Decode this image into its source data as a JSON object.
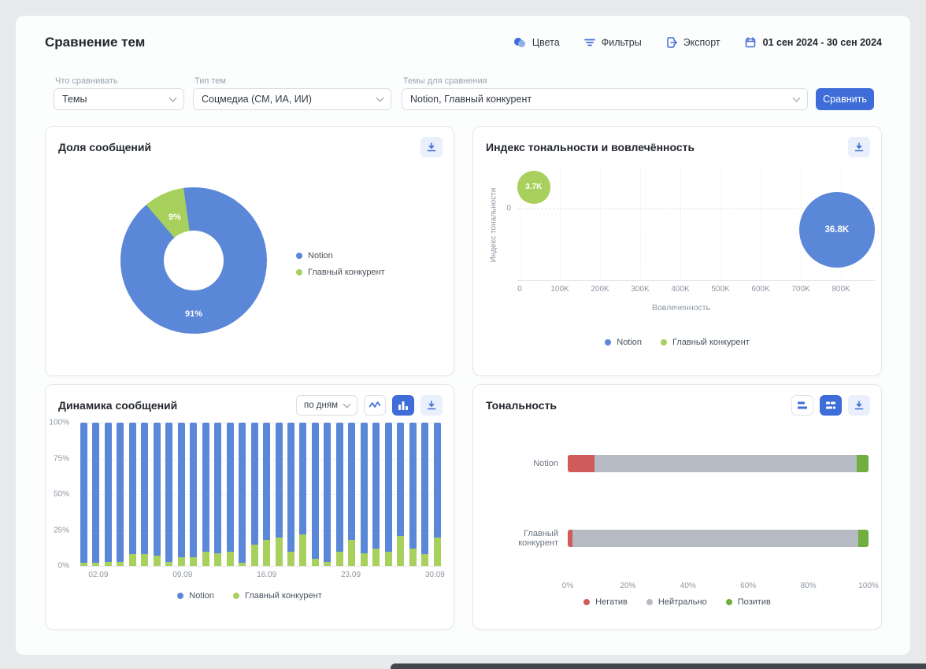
{
  "page": {
    "title": "Сравнение тем"
  },
  "header": {
    "colors_label": "Цвета",
    "filters_label": "Фильтры",
    "export_label": "Экспорт",
    "date_range": "01 сен 2024 - 30 сен 2024"
  },
  "filter_bar": {
    "compare_label": "Что сравнивать",
    "compare_value": "Темы",
    "type_label": "Тип тем",
    "type_value": "Соцмедиа (СМ, ИА, ИИ)",
    "topics_label": "Темы для сравнения",
    "topics_value": "Notion, Главный конкурент",
    "submit_label": "Сравнить"
  },
  "icons": {
    "colors": "palette-circles",
    "filters": "filter-lines",
    "export": "box-arrow-right",
    "date": "calendar",
    "download": "download-tray",
    "line_view": "line-chart",
    "bar_view": "bar-chart",
    "grouped_view": "horizontal-bars",
    "stacked_view": "stacked-bars"
  },
  "colors": {
    "notion_blue": "#5b87d8",
    "competitor_green": "#a8d05c",
    "negative_red": "#d05b5b",
    "neutral_gray": "#b5bac3",
    "positive_green": "#6fae3f",
    "accent_blue": "#3e6cd8"
  },
  "chart_data": [
    {
      "id": "share_donut",
      "type": "pie",
      "title": "Доля сообщений",
      "series": [
        {
          "name": "Notion",
          "value": 91,
          "color": "#5b87d8"
        },
        {
          "name": "Главный конкурент",
          "value": 9,
          "color": "#a8d05c"
        }
      ],
      "labels": [
        "91%",
        "9%"
      ]
    },
    {
      "id": "tonality_engagement",
      "type": "scatter",
      "title": "Индекс тональности и вовлечённость",
      "xlabel": "Вовлеченность",
      "ylabel": "Индекс тональности",
      "x_ticks": [
        "0",
        "100K",
        "200K",
        "300K",
        "400K",
        "500K",
        "600K",
        "700K",
        "800K"
      ],
      "y_ticks": [
        "0"
      ],
      "points": [
        {
          "name": "Notion",
          "label": "36.8K",
          "size": 36800,
          "x": 790000,
          "y": -3,
          "color": "#5b87d8"
        },
        {
          "name": "Главный конкурент",
          "label": "3.7K",
          "size": 3700,
          "x": 35000,
          "y": 3,
          "color": "#a8d05c"
        }
      ]
    },
    {
      "id": "dynamics",
      "type": "bar",
      "stacked": true,
      "percent": true,
      "title": "Динамика сообщений",
      "interval": "по дням",
      "y_ticks": [
        "100%",
        "75%",
        "50%",
        "25%",
        "0%"
      ],
      "categories": [
        "01.09",
        "02.09",
        "03.09",
        "04.09",
        "05.09",
        "06.09",
        "07.09",
        "08.09",
        "09.09",
        "10.09",
        "11.09",
        "12.09",
        "13.09",
        "14.09",
        "15.09",
        "16.09",
        "17.09",
        "18.09",
        "19.09",
        "20.09",
        "21.09",
        "22.09",
        "23.09",
        "24.09",
        "25.09",
        "26.09",
        "27.09",
        "28.09",
        "29.09",
        "30.09"
      ],
      "x_tick_labels": [
        {
          "index": 1,
          "label": "02.09"
        },
        {
          "index": 8,
          "label": "09.09"
        },
        {
          "index": 15,
          "label": "16.09"
        },
        {
          "index": 22,
          "label": "23.09"
        },
        {
          "index": 29,
          "label": "30.09"
        }
      ],
      "series": [
        {
          "name": "Notion",
          "color": "#5b87d8",
          "values": [
            98,
            98,
            97,
            97,
            92,
            92,
            93,
            97,
            94,
            94,
            90,
            91,
            90,
            98,
            85,
            82,
            80,
            90,
            78,
            95,
            97,
            90,
            82,
            91,
            88,
            90,
            79,
            88,
            92,
            80
          ]
        },
        {
          "name": "Главный конкурент",
          "color": "#a8d05c",
          "values": [
            2,
            2,
            3,
            3,
            8,
            8,
            7,
            3,
            6,
            6,
            10,
            9,
            10,
            2,
            15,
            18,
            20,
            10,
            22,
            5,
            3,
            10,
            18,
            9,
            12,
            10,
            21,
            12,
            8,
            20
          ]
        }
      ]
    },
    {
      "id": "tonality",
      "type": "bar",
      "orientation": "horizontal",
      "stacked": true,
      "percent": true,
      "title": "Тональность",
      "categories": [
        "Notion",
        "Главный конкурент"
      ],
      "x_ticks": [
        "0%",
        "20%",
        "40%",
        "60%",
        "80%",
        "100%"
      ],
      "series": [
        {
          "name": "Негатив",
          "color": "#d05b5b",
          "values": [
            9,
            1.5
          ]
        },
        {
          "name": "Нейтрально",
          "color": "#b5bac3",
          "values": [
            87,
            95
          ]
        },
        {
          "name": "Позитив",
          "color": "#6fae3f",
          "values": [
            4,
            3.5
          ]
        }
      ]
    }
  ]
}
